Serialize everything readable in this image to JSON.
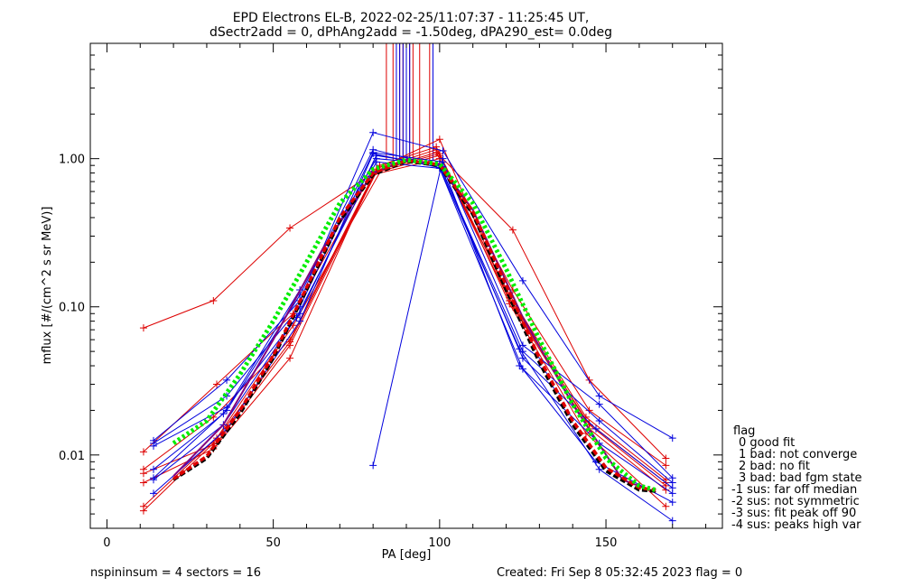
{
  "chart_data": {
    "type": "line",
    "title": "EPD Electrons EL-B, 2022-02-25/11:07:37 - 11:25:45 UT,",
    "subtitle": "dSectr2add = 0, dPhAng2add = -1.50deg, dPA290_est=   0.0deg",
    "xlabel": "PA [deg]",
    "ylabel": "mflux [#/(cm^2 s sr MeV)]",
    "xlim": [
      -5,
      185
    ],
    "ylim": [
      0.0032,
      6.0
    ],
    "yscale": "log",
    "xticks": [
      0,
      50,
      100,
      150
    ],
    "xtick_labels": [
      "0",
      "50",
      "100",
      "150"
    ],
    "yticks": [
      0.01,
      0.1,
      1.0
    ],
    "ytick_labels": [
      "0.01",
      "0.10",
      "1.00"
    ],
    "grid": false,
    "legend_placement": "right-bottom-outside",
    "legend": {
      "title": "flag",
      "entries": [
        "0 good fit",
        "1 bad: not converge",
        "2 bad: no fit",
        "3 bad: bad fgm state",
        "-1 sus: far off median",
        "-2 sus: not symmetric",
        "-3 sus: fit peak off 90",
        "-4 sus: peaks high var"
      ]
    },
    "colors": {
      "red": "#dd0000",
      "blue": "#0000dd",
      "purple": "#800080",
      "green": "#00ee00",
      "black": "#000000"
    },
    "series": [
      {
        "color": "red",
        "style": "plus",
        "x": [
          11,
          32,
          55,
          80,
          100,
          122,
          145,
          168
        ],
        "y": [
          0.072,
          0.11,
          0.34,
          0.8,
          1.05,
          0.33,
          0.032,
          0.0095
        ]
      },
      {
        "color": "red",
        "style": "plus",
        "x": [
          11,
          33,
          56,
          80,
          99,
          121,
          144,
          168
        ],
        "y": [
          0.0105,
          0.03,
          0.09,
          0.82,
          1.1,
          0.12,
          0.018,
          0.0068
        ]
      },
      {
        "color": "red",
        "style": "plus",
        "x": [
          11,
          32,
          55,
          81,
          100,
          121,
          145,
          168
        ],
        "y": [
          0.008,
          0.018,
          0.06,
          0.85,
          1.35,
          0.11,
          0.016,
          0.0062
        ]
      },
      {
        "color": "red",
        "style": "plus",
        "x": [
          11,
          33,
          55,
          82,
          99,
          121,
          144,
          168
        ],
        "y": [
          0.0075,
          0.012,
          0.055,
          0.9,
          1.2,
          0.115,
          0.017,
          0.0065
        ]
      },
      {
        "color": "red",
        "style": "plus",
        "x": [
          11,
          32,
          55,
          80,
          100,
          122,
          145,
          168
        ],
        "y": [
          0.0065,
          0.011,
          0.045,
          0.78,
          1.0,
          0.1,
          0.015,
          0.0058
        ]
      },
      {
        "color": "red",
        "style": "plus",
        "x": [
          11,
          33,
          56,
          83,
          99,
          122,
          145,
          168
        ],
        "y": [
          0.0045,
          0.013,
          0.075,
          0.88,
          1.15,
          0.13,
          0.02,
          0.0085
        ]
      },
      {
        "color": "red",
        "style": "plus",
        "x": [
          11,
          32,
          55,
          81,
          100,
          121,
          144,
          168
        ],
        "y": [
          0.0042,
          0.012,
          0.058,
          0.83,
          1.08,
          0.105,
          0.014,
          0.0045
        ]
      },
      {
        "color": "blue",
        "style": "plus",
        "x": [
          14,
          36,
          58,
          80,
          101,
          125,
          148,
          170
        ],
        "y": [
          0.0125,
          0.032,
          0.11,
          1.5,
          1.13,
          0.15,
          0.025,
          0.013
        ]
      },
      {
        "color": "blue",
        "style": "plus",
        "x": [
          14,
          36,
          58,
          80,
          101,
          125,
          148,
          170
        ],
        "y": [
          0.012,
          0.025,
          0.1,
          1.1,
          0.95,
          0.055,
          0.022,
          0.007
        ]
      },
      {
        "color": "blue",
        "style": "plus",
        "x": [
          14,
          36,
          58,
          81,
          100,
          125,
          148,
          170
        ],
        "y": [
          0.0115,
          0.021,
          0.09,
          1.05,
          0.9,
          0.05,
          0.017,
          0.0065
        ]
      },
      {
        "color": "blue",
        "style": "plus",
        "x": [
          14,
          35,
          58,
          81,
          100,
          125,
          147,
          170
        ],
        "y": [
          0.008,
          0.019,
          0.13,
          1.0,
          0.92,
          0.045,
          0.015,
          0.006
        ]
      },
      {
        "color": "blue",
        "style": "plus",
        "x": [
          14,
          36,
          58,
          80,
          101,
          124,
          148,
          170
        ],
        "y": [
          0.007,
          0.02,
          0.12,
          1.15,
          0.88,
          0.04,
          0.012,
          0.0055
        ]
      },
      {
        "color": "blue",
        "style": "plus",
        "x": [
          14,
          35,
          57,
          81,
          100,
          125,
          147,
          170
        ],
        "y": [
          0.0068,
          0.016,
          0.085,
          0.95,
          0.86,
          0.038,
          0.009,
          0.0048
        ]
      },
      {
        "color": "blue",
        "style": "plus",
        "x": [
          14,
          36,
          58,
          80,
          100,
          124,
          148,
          170
        ],
        "y": [
          0.0055,
          0.015,
          0.08,
          1.08,
          0.87,
          0.052,
          0.008,
          0.0036
        ]
      },
      {
        "color": "blue",
        "style": "plus",
        "x": [
          80,
          101
        ],
        "y": [
          0.0085,
          1.0
        ]
      },
      {
        "color": "purple",
        "style": "solid",
        "x": [
          20,
          35,
          50,
          65,
          80,
          90,
          100,
          110,
          125,
          140,
          155,
          165
        ],
        "y": [
          0.0072,
          0.016,
          0.06,
          0.25,
          0.8,
          0.98,
          0.92,
          0.45,
          0.085,
          0.022,
          0.0068,
          0.0056
        ]
      },
      {
        "color": "black",
        "style": "dashed",
        "x": [
          20,
          30,
          40,
          50,
          60,
          70,
          80,
          90,
          100,
          110,
          120,
          130,
          140,
          150,
          160,
          165
        ],
        "y": [
          0.0068,
          0.0095,
          0.019,
          0.045,
          0.13,
          0.38,
          0.78,
          0.96,
          0.9,
          0.42,
          0.13,
          0.042,
          0.016,
          0.0078,
          0.0058,
          0.0057
        ]
      },
      {
        "color": "red",
        "style": "dashed",
        "x": [
          20,
          30,
          40,
          50,
          60,
          70,
          80,
          90,
          100,
          110,
          120,
          130,
          140,
          150,
          160,
          165
        ],
        "y": [
          0.0069,
          0.0098,
          0.02,
          0.047,
          0.135,
          0.4,
          0.8,
          0.97,
          0.91,
          0.44,
          0.14,
          0.045,
          0.017,
          0.0082,
          0.006,
          0.0058
        ]
      },
      {
        "color": "green",
        "style": "dotted",
        "x": [
          20,
          30,
          40,
          50,
          60,
          70,
          80,
          90,
          100,
          110,
          120,
          130,
          140,
          150,
          160,
          165
        ],
        "y": [
          0.012,
          0.017,
          0.035,
          0.08,
          0.2,
          0.5,
          0.85,
          0.98,
          0.92,
          0.5,
          0.18,
          0.06,
          0.022,
          0.0095,
          0.0062,
          0.0058
        ]
      }
    ],
    "spikes": {
      "color_red": [
        84,
        86,
        88,
        89,
        91,
        92,
        94,
        97
      ],
      "color_blue": [
        87,
        88,
        89,
        90,
        91,
        98
      ],
      "y_from": 0.98,
      "y_to": 6.0
    }
  },
  "footer": {
    "left": "nspininsum =  4  sectors = 16",
    "right": "Created: Fri Sep  8 05:32:45 2023   flag = 0"
  }
}
